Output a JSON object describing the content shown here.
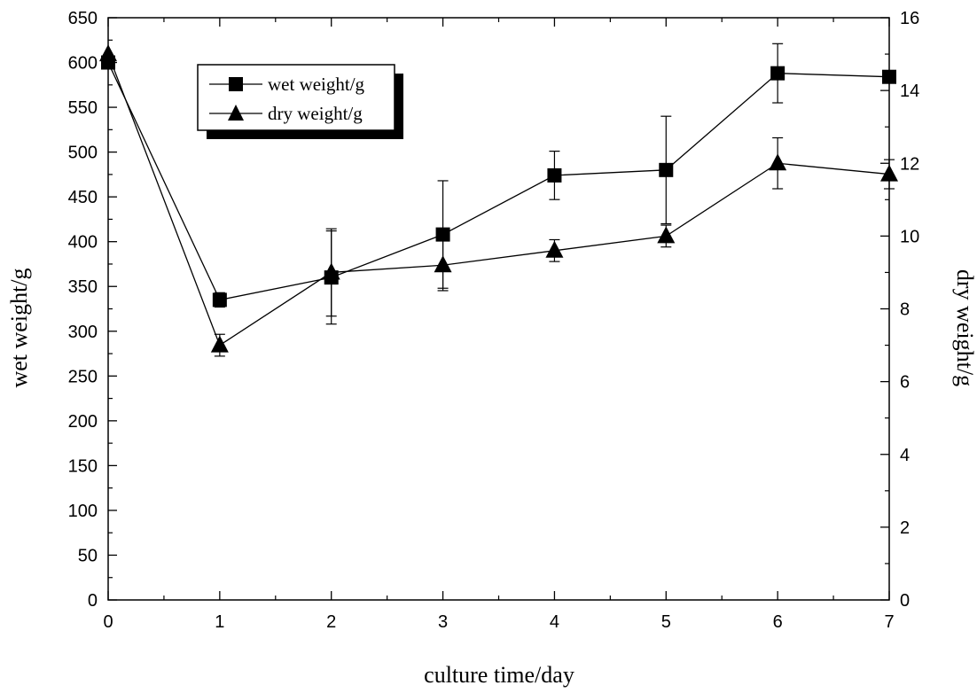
{
  "chart_data": {
    "type": "line",
    "xlabel": "culture time/day",
    "ylabel": "wet weight/g",
    "y2label": "dry weight/g",
    "xlim": [
      0,
      7
    ],
    "ylim": [
      0,
      650
    ],
    "y2lim": [
      0,
      16
    ],
    "xticks": [
      "0",
      "1",
      "2",
      "3",
      "4",
      "5",
      "6",
      "7"
    ],
    "yticks": [
      "0",
      "50",
      "100",
      "150",
      "200",
      "250",
      "300",
      "350",
      "400",
      "450",
      "500",
      "550",
      "600",
      "650"
    ],
    "y2ticks": [
      "0",
      "2",
      "4",
      "6",
      "8",
      "10",
      "12",
      "14",
      "16"
    ],
    "legend_position": "top-left",
    "grid": false,
    "series": [
      {
        "name": "wet weight/g",
        "axis": "left",
        "marker": "square",
        "x": [
          0,
          1,
          2,
          3,
          4,
          5,
          6,
          7
        ],
        "values": [
          600,
          335,
          360,
          408,
          474,
          480,
          588,
          584
        ],
        "error": [
          0,
          8,
          52,
          60,
          27,
          60,
          33,
          0
        ]
      },
      {
        "name": "dry weight/g",
        "axis": "right",
        "marker": "triangle",
        "x": [
          0,
          1,
          2,
          3,
          4,
          5,
          6,
          7
        ],
        "values": [
          15.0,
          7.0,
          9.0,
          9.2,
          9.6,
          10.0,
          12.0,
          11.7
        ],
        "error": [
          0,
          0.3,
          1.2,
          0.7,
          0.3,
          0.3,
          0.7,
          0.4
        ]
      }
    ]
  }
}
